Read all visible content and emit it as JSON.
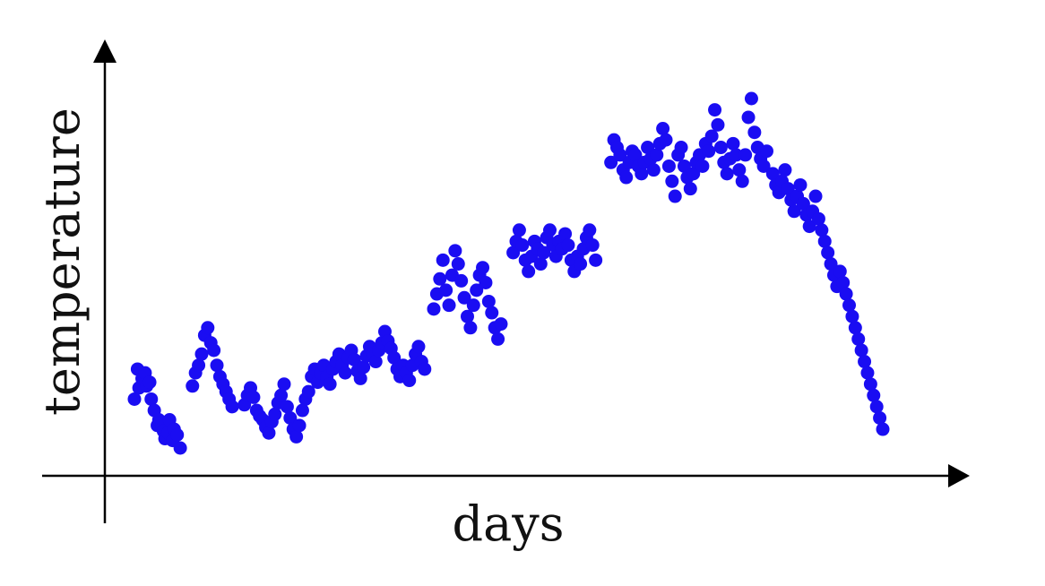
{
  "chart_data": {
    "type": "scatter",
    "title": "",
    "xlabel": "days",
    "ylabel": "temperature",
    "marker_color": "#1a0df2",
    "grid": false,
    "legend": "none",
    "x_ticks_shown": false,
    "y_ticks_shown": false,
    "series": [
      {
        "points": [
          [
            1.0,
            46.0
          ],
          [
            1.3,
            52.0
          ],
          [
            1.2,
            62.0
          ],
          [
            1.5,
            57.0
          ],
          [
            1.7,
            60.0
          ],
          [
            1.8,
            53.0
          ],
          [
            2.0,
            55.0
          ],
          [
            2.1,
            46.0
          ],
          [
            2.3,
            40.0
          ],
          [
            2.5,
            32.0
          ],
          [
            2.6,
            35.0
          ],
          [
            2.8,
            32.0
          ],
          [
            2.9,
            29.0
          ],
          [
            3.0,
            25.0
          ],
          [
            3.2,
            28.0
          ],
          [
            3.3,
            35.0
          ],
          [
            3.5,
            24.0
          ],
          [
            3.6,
            30.0
          ],
          [
            3.8,
            27.0
          ],
          [
            4.0,
            20.0
          ],
          [
            4.8,
            53.0
          ],
          [
            5.0,
            60.0
          ],
          [
            5.2,
            64.0
          ],
          [
            5.4,
            70.0
          ],
          [
            5.6,
            80.0
          ],
          [
            5.8,
            84.0
          ],
          [
            6.0,
            76.0
          ],
          [
            6.2,
            72.0
          ],
          [
            6.4,
            64.0
          ],
          [
            6.6,
            58.0
          ],
          [
            6.8,
            54.0
          ],
          [
            7.0,
            50.0
          ],
          [
            7.2,
            46.0
          ],
          [
            7.4,
            42.0
          ],
          [
            8.2,
            43.0
          ],
          [
            8.4,
            48.0
          ],
          [
            8.6,
            52.0
          ],
          [
            8.8,
            47.0
          ],
          [
            9.0,
            40.0
          ],
          [
            9.2,
            37.0
          ],
          [
            9.4,
            35.0
          ],
          [
            9.6,
            31.0
          ],
          [
            9.8,
            28.0
          ],
          [
            10.0,
            34.0
          ],
          [
            10.2,
            38.0
          ],
          [
            10.4,
            44.0
          ],
          [
            10.6,
            48.0
          ],
          [
            10.8,
            54.0
          ],
          [
            11.0,
            42.0
          ],
          [
            11.2,
            36.0
          ],
          [
            11.4,
            30.0
          ],
          [
            11.6,
            26.0
          ],
          [
            11.8,
            32.0
          ],
          [
            12.0,
            40.0
          ],
          [
            12.2,
            46.0
          ],
          [
            12.4,
            50.0
          ],
          [
            12.6,
            58.0
          ],
          [
            12.8,
            62.0
          ],
          [
            13.0,
            55.0
          ],
          [
            13.2,
            60.0
          ],
          [
            13.4,
            64.0
          ],
          [
            13.6,
            58.0
          ],
          [
            13.8,
            54.0
          ],
          [
            14.0,
            62.0
          ],
          [
            14.2,
            66.0
          ],
          [
            14.4,
            70.0
          ],
          [
            14.6,
            64.0
          ],
          [
            14.8,
            60.0
          ],
          [
            15.0,
            68.0
          ],
          [
            15.2,
            72.0
          ],
          [
            15.4,
            67.0
          ],
          [
            15.6,
            61.0
          ],
          [
            15.8,
            57.0
          ],
          [
            16.0,
            63.0
          ],
          [
            16.2,
            69.0
          ],
          [
            16.4,
            74.0
          ],
          [
            16.6,
            70.0
          ],
          [
            16.8,
            66.0
          ],
          [
            17.0,
            72.0
          ],
          [
            17.2,
            76.0
          ],
          [
            17.4,
            82.0
          ],
          [
            17.6,
            77.0
          ],
          [
            17.8,
            73.0
          ],
          [
            18.0,
            68.0
          ],
          [
            18.2,
            62.0
          ],
          [
            18.4,
            58.0
          ],
          [
            18.6,
            64.0
          ],
          [
            18.8,
            60.0
          ],
          [
            19.0,
            56.0
          ],
          [
            19.2,
            64.0
          ],
          [
            19.4,
            70.0
          ],
          [
            19.6,
            74.0
          ],
          [
            19.8,
            66.0
          ],
          [
            20.0,
            62.0
          ],
          [
            20.6,
            94.0
          ],
          [
            20.8,
            102.0
          ],
          [
            21.0,
            110.0
          ],
          [
            21.2,
            120.0
          ],
          [
            21.4,
            104.0
          ],
          [
            21.6,
            96.0
          ],
          [
            21.8,
            112.0
          ],
          [
            22.0,
            125.0
          ],
          [
            22.2,
            118.0
          ],
          [
            22.4,
            109.0
          ],
          [
            22.6,
            100.0
          ],
          [
            22.8,
            90.0
          ],
          [
            23.0,
            84.0
          ],
          [
            23.2,
            96.0
          ],
          [
            23.4,
            104.0
          ],
          [
            23.6,
            112.0
          ],
          [
            23.8,
            116.0
          ],
          [
            24.0,
            108.0
          ],
          [
            24.2,
            98.0
          ],
          [
            24.4,
            92.0
          ],
          [
            24.6,
            84.0
          ],
          [
            24.8,
            78.0
          ],
          [
            25.0,
            86.0
          ],
          [
            25.8,
            124.0
          ],
          [
            26.0,
            130.0
          ],
          [
            26.2,
            136.0
          ],
          [
            26.4,
            128.0
          ],
          [
            26.6,
            120.0
          ],
          [
            26.8,
            114.0
          ],
          [
            27.0,
            122.0
          ],
          [
            27.2,
            130.0
          ],
          [
            27.4,
            126.0
          ],
          [
            27.6,
            118.0
          ],
          [
            27.8,
            124.0
          ],
          [
            28.0,
            132.0
          ],
          [
            28.2,
            136.0
          ],
          [
            28.4,
            128.0
          ],
          [
            28.6,
            122.0
          ],
          [
            28.8,
            130.0
          ],
          [
            29.0,
            126.0
          ],
          [
            29.2,
            134.0
          ],
          [
            29.4,
            128.0
          ],
          [
            29.6,
            120.0
          ],
          [
            29.8,
            114.0
          ],
          [
            30.0,
            122.0
          ],
          [
            30.2,
            118.0
          ],
          [
            30.4,
            126.0
          ],
          [
            30.6,
            132.0
          ],
          [
            30.8,
            136.0
          ],
          [
            31.0,
            128.0
          ],
          [
            31.2,
            120.0
          ],
          [
            32.2,
            172.0
          ],
          [
            32.4,
            184.0
          ],
          [
            32.6,
            180.0
          ],
          [
            32.8,
            176.0
          ],
          [
            33.0,
            168.0
          ],
          [
            33.2,
            164.0
          ],
          [
            33.4,
            172.0
          ],
          [
            33.6,
            178.0
          ],
          [
            33.8,
            176.0
          ],
          [
            34.0,
            170.0
          ],
          [
            34.2,
            166.0
          ],
          [
            34.4,
            172.0
          ],
          [
            34.6,
            180.0
          ],
          [
            34.8,
            174.0
          ],
          [
            35.0,
            168.0
          ],
          [
            35.2,
            176.0
          ],
          [
            35.4,
            182.0
          ],
          [
            35.6,
            190.0
          ],
          [
            35.8,
            184.0
          ],
          [
            36.0,
            170.0
          ],
          [
            36.2,
            162.0
          ],
          [
            36.4,
            154.0
          ],
          [
            36.6,
            176.0
          ],
          [
            36.8,
            180.0
          ],
          [
            37.0,
            170.0
          ],
          [
            37.2,
            164.0
          ],
          [
            37.4,
            158.0
          ],
          [
            37.6,
            166.0
          ],
          [
            37.8,
            172.0
          ],
          [
            38.0,
            176.0
          ],
          [
            38.2,
            170.0
          ],
          [
            38.4,
            182.0
          ],
          [
            38.6,
            178.0
          ],
          [
            38.8,
            186.0
          ],
          [
            39.0,
            200.0
          ],
          [
            39.2,
            192.0
          ],
          [
            39.4,
            180.0
          ],
          [
            39.6,
            172.0
          ],
          [
            39.8,
            166.0
          ],
          [
            40.0,
            174.0
          ],
          [
            40.2,
            182.0
          ],
          [
            40.4,
            176.0
          ],
          [
            40.6,
            168.0
          ],
          [
            40.8,
            162.0
          ],
          [
            41.0,
            176.0
          ],
          [
            41.2,
            196.0
          ],
          [
            41.4,
            206.0
          ],
          [
            41.6,
            188.0
          ],
          [
            41.8,
            180.0
          ],
          [
            42.0,
            174.0
          ],
          [
            42.2,
            170.0
          ],
          [
            42.4,
            178.0
          ],
          [
            42.8,
            166.0
          ],
          [
            43.0,
            160.0
          ],
          [
            43.2,
            156.0
          ],
          [
            43.4,
            162.0
          ],
          [
            43.6,
            168.0
          ],
          [
            43.8,
            158.0
          ],
          [
            44.0,
            152.0
          ],
          [
            44.2,
            146.0
          ],
          [
            44.4,
            154.0
          ],
          [
            44.6,
            160.0
          ],
          [
            44.8,
            150.0
          ],
          [
            45.0,
            144.0
          ],
          [
            45.2,
            138.0
          ],
          [
            45.4,
            146.0
          ],
          [
            45.6,
            154.0
          ],
          [
            45.8,
            142.0
          ],
          [
            46.0,
            136.0
          ],
          [
            46.2,
            130.0
          ],
          [
            46.4,
            124.0
          ],
          [
            46.6,
            118.0
          ],
          [
            46.8,
            112.0
          ],
          [
            47.0,
            106.0
          ],
          [
            47.2,
            114.0
          ],
          [
            47.4,
            108.0
          ],
          [
            47.6,
            102.0
          ],
          [
            47.8,
            96.0
          ],
          [
            48.0,
            90.0
          ],
          [
            48.2,
            84.0
          ],
          [
            48.4,
            78.0
          ],
          [
            48.6,
            72.0
          ],
          [
            48.8,
            66.0
          ],
          [
            49.0,
            60.0
          ],
          [
            49.2,
            54.0
          ],
          [
            49.4,
            48.0
          ],
          [
            49.6,
            42.0
          ],
          [
            49.8,
            36.0
          ],
          [
            50.0,
            30.0
          ]
        ]
      }
    ]
  }
}
